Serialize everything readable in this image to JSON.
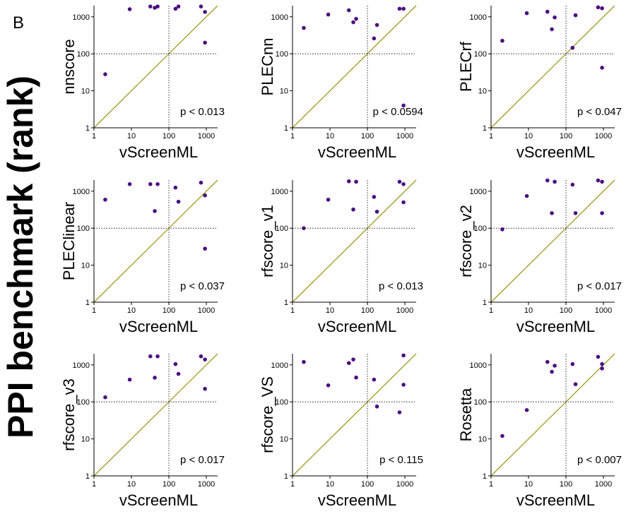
{
  "label": "B",
  "ylabel": "PPI benchmark (rank)",
  "chart_data": [
    {
      "type": "scatter",
      "ylabel": "nnscore",
      "xlabel": "vScreenML",
      "annotation": "p < 0.013",
      "log_x": true,
      "log_y": true,
      "xlim": [
        1,
        2000
      ],
      "ylim": [
        1,
        2000
      ],
      "xticks": [
        1,
        10,
        100,
        1000
      ],
      "yticks": [
        1,
        10,
        100,
        1000
      ],
      "vline": 100,
      "hline": 100,
      "diagonal": true,
      "diagonal_color": "#9c9c1f",
      "color": "#4b0f80",
      "x": [
        2,
        9,
        32,
        42,
        50,
        150,
        180,
        720,
        920,
        920
      ],
      "values": [
        28,
        1600,
        1900,
        1750,
        1900,
        1650,
        1900,
        1900,
        1350,
        200
      ]
    },
    {
      "type": "scatter",
      "ylabel": "PLECnn",
      "xlabel": "vScreenML",
      "annotation": "p < 0.0594",
      "log_x": true,
      "log_y": true,
      "xlim": [
        1,
        2000
      ],
      "ylim": [
        1,
        2000
      ],
      "xticks": [
        1,
        10,
        100,
        1000
      ],
      "yticks": [
        1,
        10,
        100,
        1000
      ],
      "vline": 100,
      "hline": 100,
      "diagonal": true,
      "diagonal_color": "#9c9c1f",
      "color": "#4b0f80",
      "x": [
        2,
        9,
        32,
        42,
        50,
        150,
        180,
        720,
        920,
        920
      ],
      "values": [
        500,
        1150,
        1500,
        710,
        880,
        260,
        600,
        1650,
        1650,
        4
      ]
    },
    {
      "type": "scatter",
      "ylabel": "PLECrf",
      "xlabel": "vScreenML",
      "annotation": "p < 0.047",
      "log_x": true,
      "log_y": true,
      "xlim": [
        1,
        2000
      ],
      "ylim": [
        1,
        2000
      ],
      "xticks": [
        1,
        10,
        100,
        1000
      ],
      "yticks": [
        1,
        10,
        100,
        1000
      ],
      "vline": 100,
      "hline": 100,
      "diagonal": true,
      "diagonal_color": "#9c9c1f",
      "color": "#4b0f80",
      "x": [
        2,
        9,
        32,
        42,
        50,
        150,
        180,
        720,
        920,
        920
      ],
      "values": [
        225,
        1250,
        1370,
        460,
        960,
        145,
        1100,
        1800,
        1700,
        42
      ]
    },
    {
      "type": "scatter",
      "ylabel": "PLEClinear",
      "xlabel": "vScreenML",
      "annotation": "p < 0.037",
      "log_x": true,
      "log_y": true,
      "xlim": [
        1,
        2000
      ],
      "ylim": [
        1,
        2000
      ],
      "xticks": [
        1,
        10,
        100,
        1000
      ],
      "yticks": [
        1,
        10,
        100,
        1000
      ],
      "vline": 100,
      "hline": 100,
      "diagonal": true,
      "diagonal_color": "#9c9c1f",
      "color": "#4b0f80",
      "x": [
        2,
        9,
        32,
        42,
        50,
        150,
        180,
        720,
        920,
        920
      ],
      "values": [
        590,
        1550,
        1550,
        290,
        1550,
        1250,
        520,
        1700,
        770,
        28
      ]
    },
    {
      "type": "scatter",
      "ylabel": "rfscore_v1",
      "xlabel": "vScreenML",
      "annotation": "p < 0.013",
      "log_x": true,
      "log_y": true,
      "xlim": [
        1,
        2000
      ],
      "ylim": [
        1,
        2000
      ],
      "xticks": [
        1,
        10,
        100,
        1000
      ],
      "yticks": [
        1,
        10,
        100,
        1000
      ],
      "vline": 100,
      "hline": 100,
      "diagonal": true,
      "diagonal_color": "#9c9c1f",
      "color": "#4b0f80",
      "x": [
        2,
        9,
        32,
        42,
        50,
        150,
        180,
        720,
        920,
        920
      ],
      "values": [
        100,
        590,
        1850,
        320,
        1800,
        700,
        280,
        1800,
        1550,
        500
      ]
    },
    {
      "type": "scatter",
      "ylabel": "rfscore_v2",
      "xlabel": "vScreenML",
      "annotation": "p < 0.017",
      "log_x": true,
      "log_y": true,
      "xlim": [
        1,
        2000
      ],
      "ylim": [
        1,
        2000
      ],
      "xticks": [
        1,
        10,
        100,
        1000
      ],
      "yticks": [
        1,
        10,
        100,
        1000
      ],
      "vline": 100,
      "hline": 100,
      "diagonal": true,
      "diagonal_color": "#9c9c1f",
      "color": "#4b0f80",
      "x": [
        2,
        9,
        32,
        42,
        50,
        150,
        180,
        720,
        920,
        920
      ],
      "values": [
        93,
        740,
        1950,
        255,
        1800,
        1500,
        255,
        1950,
        1800,
        255
      ]
    },
    {
      "type": "scatter",
      "ylabel": "rfscore_v3",
      "xlabel": "vScreenML",
      "annotation": "p < 0.017",
      "log_x": true,
      "log_y": true,
      "xlim": [
        1,
        2000
      ],
      "ylim": [
        1,
        2000
      ],
      "xticks": [
        1,
        10,
        100,
        1000
      ],
      "yticks": [
        1,
        10,
        100,
        1000
      ],
      "vline": 100,
      "hline": 100,
      "diagonal": true,
      "diagonal_color": "#9c9c1f",
      "color": "#4b0f80",
      "x": [
        2,
        9,
        32,
        42,
        50,
        150,
        180,
        720,
        920,
        920
      ],
      "values": [
        133,
        400,
        1700,
        450,
        1700,
        1050,
        570,
        1700,
        1400,
        225
      ]
    },
    {
      "type": "scatter",
      "ylabel": "rfscore_VS",
      "xlabel": "vScreenML",
      "annotation": "p < 0.115",
      "log_x": true,
      "log_y": true,
      "xlim": [
        1,
        2000
      ],
      "ylim": [
        1,
        2000
      ],
      "xticks": [
        1,
        10,
        100,
        1000
      ],
      "yticks": [
        1,
        10,
        100,
        1000
      ],
      "vline": 100,
      "hline": 100,
      "diagonal": true,
      "diagonal_color": "#9c9c1f",
      "color": "#4b0f80",
      "x": [
        2,
        9,
        32,
        42,
        50,
        150,
        180,
        720,
        920,
        920
      ],
      "values": [
        1200,
        280,
        1120,
        1400,
        455,
        400,
        75,
        52,
        1800,
        290
      ]
    },
    {
      "type": "scatter",
      "ylabel": "Rosetta",
      "xlabel": "vScreenML",
      "annotation": "p < 0.007",
      "log_x": true,
      "log_y": true,
      "xlim": [
        1,
        2000
      ],
      "ylim": [
        1,
        2000
      ],
      "xticks": [
        1,
        10,
        100,
        1000
      ],
      "yticks": [
        1,
        10,
        100,
        1000
      ],
      "vline": 100,
      "hline": 100,
      "diagonal": true,
      "diagonal_color": "#9c9c1f",
      "color": "#4b0f80",
      "x": [
        2,
        9,
        32,
        42,
        50,
        150,
        180,
        720,
        920,
        920
      ],
      "values": [
        12,
        60,
        1200,
        650,
        950,
        1050,
        300,
        1650,
        1050,
        800
      ]
    }
  ]
}
